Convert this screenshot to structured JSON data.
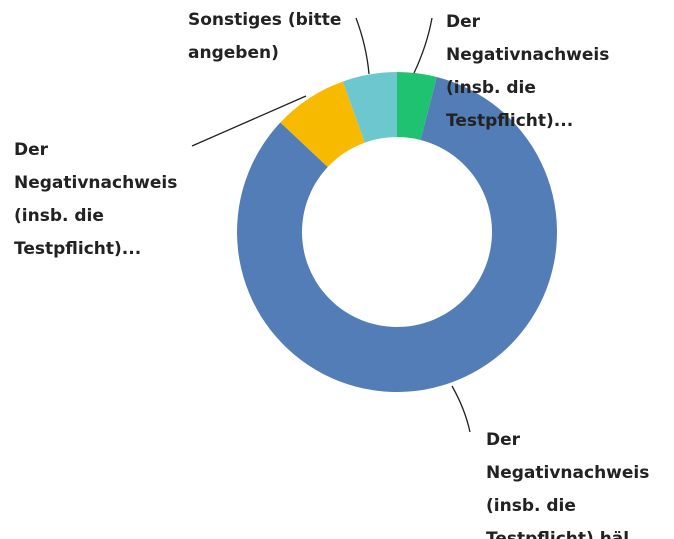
{
  "chart_data": {
    "type": "donut",
    "categories": [
      [
        "Der",
        "Negativnachweis",
        "(insb. die",
        "Testpflicht)..."
      ],
      [
        "Der",
        "Negativnachweis",
        "(insb. die",
        "Testpflicht) häl"
      ],
      [
        "Der",
        "Negativnachweis",
        "(insb. die",
        "Testpflicht)..."
      ],
      [
        "Sonstiges (bitte",
        "angeben)"
      ]
    ],
    "values": [
      4,
      83,
      7.5,
      5.5
    ],
    "colors": [
      "#1fc271",
      "#527db6",
      "#f7ba00",
      "#6dc7ce"
    ]
  }
}
